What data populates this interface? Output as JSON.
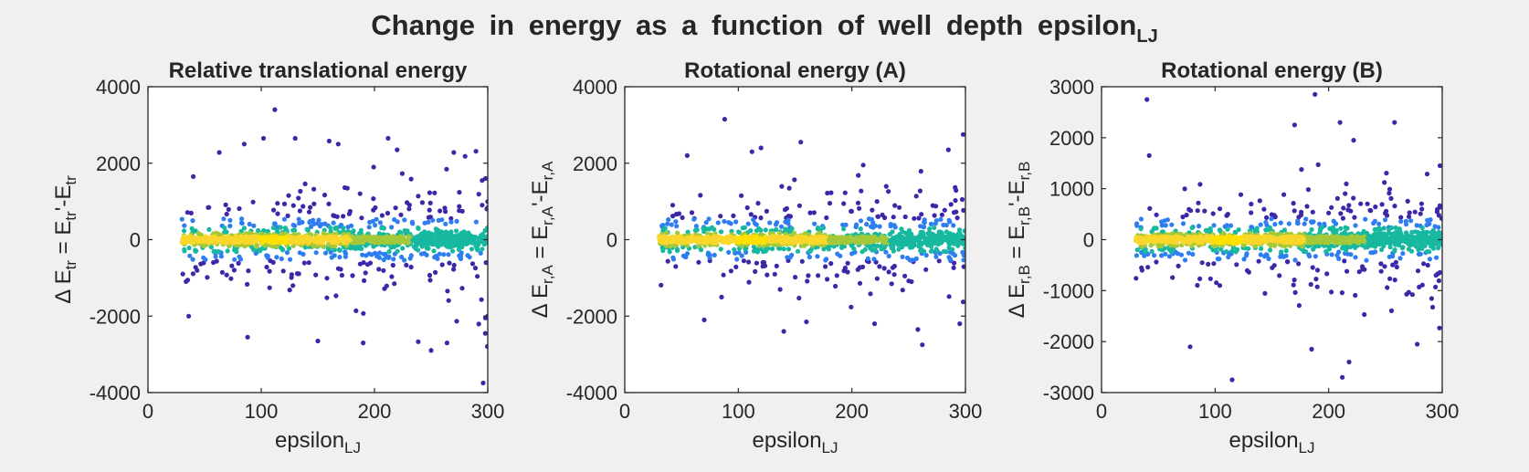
{
  "figure": {
    "title_main": "Change in energy as a function of well depth epsilon",
    "title_sub": "LJ",
    "background": "#f0f0f0"
  },
  "colors": {
    "low_density": "#3e26a8",
    "mid_low": "#2f7ef0",
    "mid": "#17b8a0",
    "mid_high": "#a3c83a",
    "high_density": "#f9d72b",
    "peak": "#ffe000",
    "text": "#262626",
    "axes_bg": "#ffffff"
  },
  "chart_data": [
    {
      "type": "scatter",
      "title": "Relative translational energy",
      "xlabel_main": "epsilon",
      "xlabel_sub": "LJ",
      "ylabel": "Δ E_tr = E_tr'-E_tr",
      "ylabel_parts": {
        "delta": "Δ",
        "e1": "E",
        "s1": "tr",
        "eq": "=",
        "e2": "E",
        "s2": "tr",
        "prime": "'",
        "minus": "-",
        "e3": "E",
        "s3": "tr"
      },
      "xlim": [
        0,
        300
      ],
      "ylim": [
        -4000,
        4000
      ],
      "xticks": [
        0,
        100,
        200,
        300
      ],
      "yticks": [
        -4000,
        -2000,
        0,
        2000,
        4000
      ],
      "grid": false,
      "colormap": "density (parula)",
      "x_range_of_points": [
        30,
        300
      ],
      "spread_sd_low_x": 450,
      "spread_sd_high_x": 850,
      "y_extremes": [
        -3750,
        3400
      ],
      "sample_outliers": [
        [
          40,
          1650
        ],
        [
          63,
          2280
        ],
        [
          85,
          2500
        ],
        [
          102,
          2650
        ],
        [
          112,
          3400
        ],
        [
          130,
          2650
        ],
        [
          160,
          2580
        ],
        [
          168,
          2500
        ],
        [
          212,
          2650
        ],
        [
          220,
          2350
        ],
        [
          270,
          2280
        ],
        [
          280,
          2180
        ],
        [
          298,
          1600
        ],
        [
          36,
          -2000
        ],
        [
          88,
          -2550
        ],
        [
          150,
          -2650
        ],
        [
          190,
          -2700
        ],
        [
          250,
          -2900
        ],
        [
          264,
          -2700
        ],
        [
          296,
          -3750
        ],
        [
          298,
          -2050
        ]
      ]
    },
    {
      "type": "scatter",
      "title": "Rotational energy (A)",
      "xlabel_main": "epsilon",
      "xlabel_sub": "LJ",
      "ylabel": "Δ E_r,A = E_r,A'-E_r,A",
      "ylabel_parts": {
        "delta": "Δ",
        "e1": "E",
        "s1": "r,A",
        "eq": "=",
        "e2": "E",
        "s2": "r,A",
        "prime": "'",
        "minus": "-",
        "e3": "E",
        "s3": "r,A"
      },
      "xlim": [
        0,
        300
      ],
      "ylim": [
        -4000,
        4000
      ],
      "xticks": [
        0,
        100,
        200,
        300
      ],
      "yticks": [
        -4000,
        -2000,
        0,
        2000,
        4000
      ],
      "grid": false,
      "colormap": "density (parula)",
      "x_range_of_points": [
        30,
        300
      ],
      "spread_sd_low_x": 350,
      "spread_sd_high_x": 700,
      "y_extremes": [
        -2750,
        3150
      ],
      "sample_outliers": [
        [
          55,
          2200
        ],
        [
          88,
          3150
        ],
        [
          112,
          2300
        ],
        [
          120,
          2400
        ],
        [
          155,
          2550
        ],
        [
          210,
          1950
        ],
        [
          285,
          2350
        ],
        [
          298,
          2750
        ],
        [
          70,
          -2100
        ],
        [
          140,
          -2400
        ],
        [
          160,
          -2150
        ],
        [
          220,
          -2200
        ],
        [
          262,
          -2750
        ],
        [
          295,
          -2200
        ]
      ]
    },
    {
      "type": "scatter",
      "title": "Rotational energy (B)",
      "xlabel_main": "epsilon",
      "xlabel_sub": "LJ",
      "ylabel": "Δ E_r,B = E_r,B'-E_r,B",
      "ylabel_parts": {
        "delta": "Δ",
        "e1": "E",
        "s1": "r,B",
        "eq": "=",
        "e2": "E",
        "s2": "r,B",
        "prime": "'",
        "minus": "-",
        "e3": "E",
        "s3": "r,B"
      },
      "xlim": [
        0,
        300
      ],
      "ylim": [
        -3000,
        3000
      ],
      "xticks": [
        0,
        100,
        200,
        300
      ],
      "yticks": [
        -3000,
        -2000,
        -1000,
        0,
        1000,
        2000,
        3000
      ],
      "grid": false,
      "colormap": "density (parula)",
      "x_range_of_points": [
        30,
        300
      ],
      "spread_sd_low_x": 320,
      "spread_sd_high_x": 620,
      "y_extremes": [
        -2750,
        2850
      ],
      "sample_outliers": [
        [
          40,
          2750
        ],
        [
          42,
          1650
        ],
        [
          170,
          2250
        ],
        [
          188,
          2850
        ],
        [
          210,
          2300
        ],
        [
          222,
          1950
        ],
        [
          258,
          2300
        ],
        [
          298,
          1450
        ],
        [
          78,
          -2100
        ],
        [
          115,
          -2750
        ],
        [
          185,
          -2150
        ],
        [
          212,
          -2700
        ],
        [
          218,
          -2400
        ],
        [
          278,
          -2050
        ]
      ]
    }
  ]
}
